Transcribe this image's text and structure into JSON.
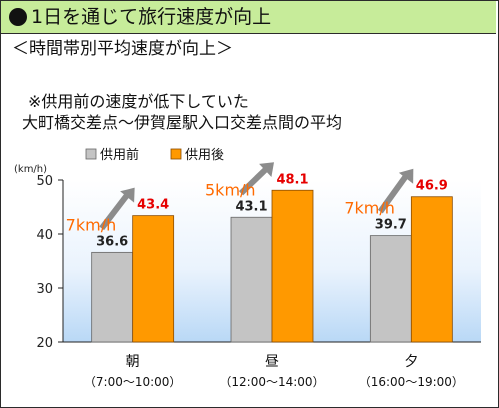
{
  "header": {
    "title": "1日を通じて旅行速度が向上"
  },
  "subtitle": "＜時間帯別平均速度が向上＞",
  "notes": {
    "line1": "※供用前の速度が低下していた",
    "line2": "大町橋交差点～伊賀屋駅入口交差点間の平均"
  },
  "colors": {
    "header_bg": "#c7ec9a",
    "before": "#c4c4c4",
    "after": "#ff9900",
    "after_label": "#e60000",
    "diff_label": "#ff6a00",
    "arrow": "#8c8c8c"
  },
  "chart_data": {
    "type": "bar",
    "title": "",
    "xlabel": "",
    "ylabel": "(km/h)",
    "ylim": [
      20,
      50
    ],
    "yticks": [
      20,
      30,
      40,
      50
    ],
    "grid": false,
    "legend": "top-left",
    "categories": [
      {
        "name": "朝",
        "time": "（7:00～10:00）"
      },
      {
        "name": "昼",
        "time": "（12:00～14:00）"
      },
      {
        "name": "夕",
        "time": "（16:00～19:00）"
      }
    ],
    "series": [
      {
        "name": "供用前",
        "values": [
          36.6,
          43.1,
          39.7
        ],
        "labels": [
          "36.6",
          "43.1",
          "39.7"
        ]
      },
      {
        "name": "供用後",
        "values": [
          43.4,
          48.1,
          46.9
        ],
        "labels": [
          "43.4",
          "48.1",
          "46.9"
        ]
      }
    ],
    "annotations": [
      "7km/h",
      "5km/h",
      "7km/h"
    ]
  }
}
